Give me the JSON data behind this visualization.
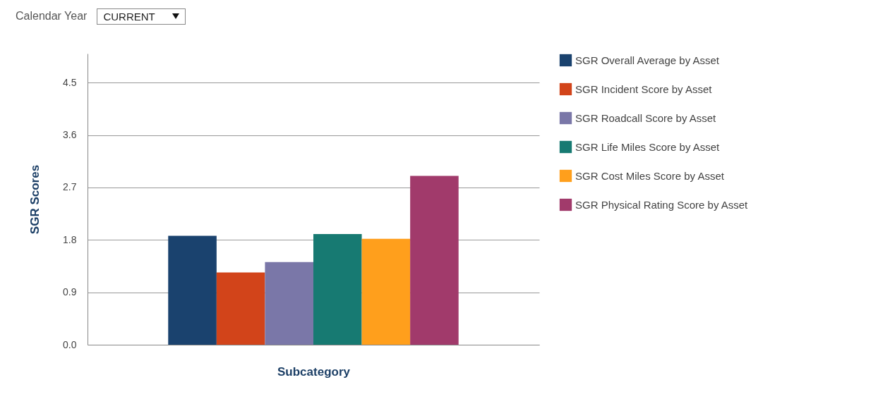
{
  "chart_data": {
    "type": "bar",
    "xlabel": "Subcategory",
    "ylabel": "SGR Scores",
    "categories": [
      null
    ],
    "series": [
      {
        "name": "SGR Overall Average by Asset",
        "color": "#1a426e",
        "values": [
          1.87
        ]
      },
      {
        "name": "SGR Incident Score by Asset",
        "color": "#d2441a",
        "values": [
          1.24
        ]
      },
      {
        "name": "SGR Roadcall Score by Asset",
        "color": "#7a77a8",
        "values": [
          1.42
        ]
      },
      {
        "name": "SGR Life Miles Score by Asset",
        "color": "#177a72",
        "values": [
          1.9
        ]
      },
      {
        "name": "SGR Cost Miles Score by Asset",
        "color": "#ff9f1c",
        "values": [
          1.82
        ]
      },
      {
        "name": "SGR Physical Rating Score by Asset",
        "color": "#a13a6b",
        "values": [
          2.9
        ]
      }
    ],
    "ylim": [
      0,
      5.0
    ],
    "yticks": [
      {
        "value": 0,
        "label": "0.0"
      },
      0.9,
      1.8,
      2.7,
      3.6,
      4.5
    ],
    "grid": "y",
    "legend": "right",
    "annotations": [
      "Calendar Year",
      "CURRENT"
    ]
  }
}
